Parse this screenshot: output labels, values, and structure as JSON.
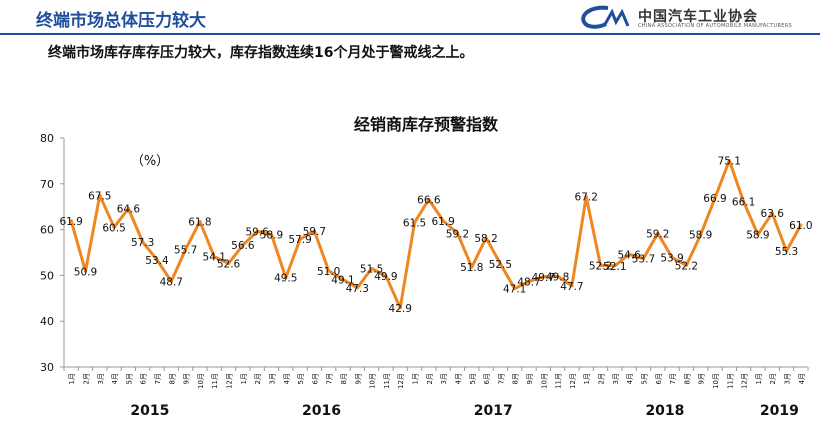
{
  "header": {
    "title": "终端市场总体压力较大",
    "logo_text": "中国汽车工业协会",
    "logo_sub": "CHINA ASSOCIATION OF AUTOMOBILE MANUFACTURERS"
  },
  "subtitle": "终端市场库存库存压力较大，库存指数连续16个月处于警戒线之上。",
  "colors": {
    "line": "#f0861f",
    "header_blue": "#1f4e9c"
  },
  "chart_data": {
    "type": "line",
    "title": "经销商库存预警指数",
    "unit_label": "（%）",
    "ylim": [
      30,
      80
    ],
    "yticks": [
      "30",
      "40",
      "50",
      "60",
      "70",
      "80"
    ],
    "grid": false,
    "x": [
      "1月",
      "2月",
      "3月",
      "4月",
      "5月",
      "6月",
      "7月",
      "8月",
      "9月",
      "10月",
      "11月",
      "12月",
      "1月",
      "2月",
      "3月",
      "4月",
      "5月",
      "6月",
      "7月",
      "8月",
      "9月",
      "10月",
      "11月",
      "12月",
      "1月",
      "2月",
      "3月",
      "4月",
      "5月",
      "6月",
      "7月",
      "8月",
      "9月",
      "10月",
      "11月",
      "12月",
      "1月",
      "2月",
      "3月",
      "4月",
      "5月",
      "6月",
      "7月",
      "8月",
      "9月",
      "10月",
      "11月",
      "12月",
      "1月",
      "2月",
      "3月",
      "4月"
    ],
    "years": [
      {
        "label": "2015",
        "start": 0,
        "count": 12
      },
      {
        "label": "2016",
        "start": 12,
        "count": 12
      },
      {
        "label": "2017",
        "start": 24,
        "count": 12
      },
      {
        "label": "2018",
        "start": 36,
        "count": 12
      },
      {
        "label": "2019",
        "start": 48,
        "count": 4
      }
    ],
    "series": [
      {
        "values": [
          61.9,
          50.9,
          67.5,
          60.5,
          64.6,
          57.3,
          53.4,
          48.7,
          55.7,
          61.8,
          54.1,
          52.6,
          56.6,
          59.6,
          58.9,
          49.5,
          57.9,
          59.7,
          51.0,
          49.1,
          47.3,
          51.5,
          49.9,
          42.9,
          61.5,
          66.6,
          61.9,
          59.2,
          51.8,
          58.2,
          52.5,
          47.1,
          48.7,
          49.7,
          49.8,
          47.7,
          67.2,
          52.2,
          52.1,
          54.6,
          53.7,
          59.2,
          53.9,
          52.2,
          58.9,
          66.9,
          75.1,
          66.1,
          58.9,
          63.6,
          55.3,
          61.0
        ],
        "labels": [
          "61.9",
          "50.9",
          "67.5",
          "60.5",
          "64.6",
          "57.3",
          "53.4",
          "48.7",
          "55.7",
          "61.8",
          "54.1",
          "52.6",
          "56.6",
          "59.6",
          "58.9",
          "49.5",
          "57.9",
          "59.7",
          "51.0",
          "49.1",
          "47.3",
          "51.5",
          "49.9",
          "42.9",
          "61.5",
          "66.6",
          "61.9",
          "59.2",
          "51.8",
          "58.2",
          "52.5",
          "47.1",
          "48.7",
          "49.7",
          "49.8",
          "47.7",
          "67.2",
          "52.2",
          "52.1",
          "54.6",
          "53.7",
          "59.2",
          "53.9",
          "52.2",
          "58.9",
          "66.9",
          "75.1",
          "66.1",
          "58.9",
          "63.6",
          "55.3",
          "61.0"
        ]
      }
    ]
  }
}
